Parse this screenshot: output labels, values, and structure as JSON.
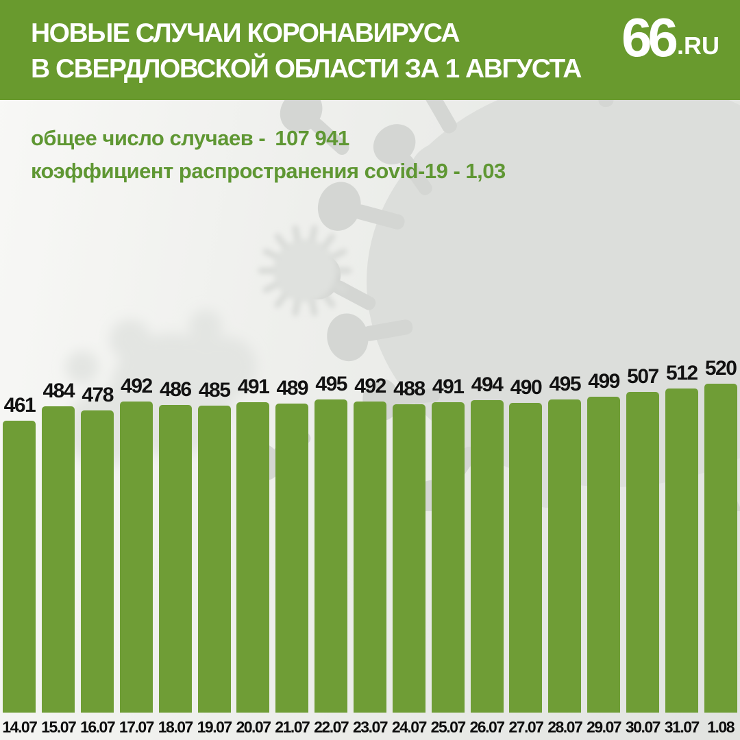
{
  "header": {
    "title_line1": "НОВЫЕ СЛУЧАИ КОРОНАВИРУСА",
    "title_line2": "В СВЕРДЛОВСКОЙ ОБЛАСТИ ЗА 1 АВГУСТА",
    "logo_main": "66",
    "logo_suffix": ".RU"
  },
  "summary": {
    "total_cases_label": "общее число случаев -",
    "total_cases_value": "107 941",
    "spread_rate_label": "коэффициент распространения covid-19 -",
    "spread_rate_value": "1,03"
  },
  "chart_data": {
    "type": "bar",
    "title": "НОВЫЕ СЛУЧАИ КОРОНАВИРУСА В СВЕРДЛОВСКОЙ ОБЛАСТИ ЗА 1 АВГУСТА",
    "categories": [
      "14.07",
      "15.07",
      "16.07",
      "17.07",
      "18.07",
      "19.07",
      "20.07",
      "21.07",
      "22.07",
      "23.07",
      "24.07",
      "25.07",
      "26.07",
      "27.07",
      "28.07",
      "29.07",
      "30.07",
      "31.07",
      "1.08"
    ],
    "values": [
      461,
      484,
      478,
      492,
      486,
      485,
      491,
      489,
      495,
      492,
      488,
      491,
      494,
      490,
      495,
      499,
      507,
      512,
      520
    ],
    "xlabel": "",
    "ylabel": "",
    "ylim": [
      0,
      520
    ],
    "grid": false,
    "legend": false,
    "value_labels_shown": true
  },
  "colors": {
    "header_background": "#699a2e",
    "bar_fill": "#6f9d36",
    "title_text": "#ffffff",
    "summary_text": "#5f9733",
    "value_label_text": "#121212",
    "date_label_text": "#0d0d0d",
    "background": "#ebece9",
    "virus_illustration": "#dcdedb"
  },
  "icons": {
    "background_illustration": "coronavirus-photo"
  }
}
